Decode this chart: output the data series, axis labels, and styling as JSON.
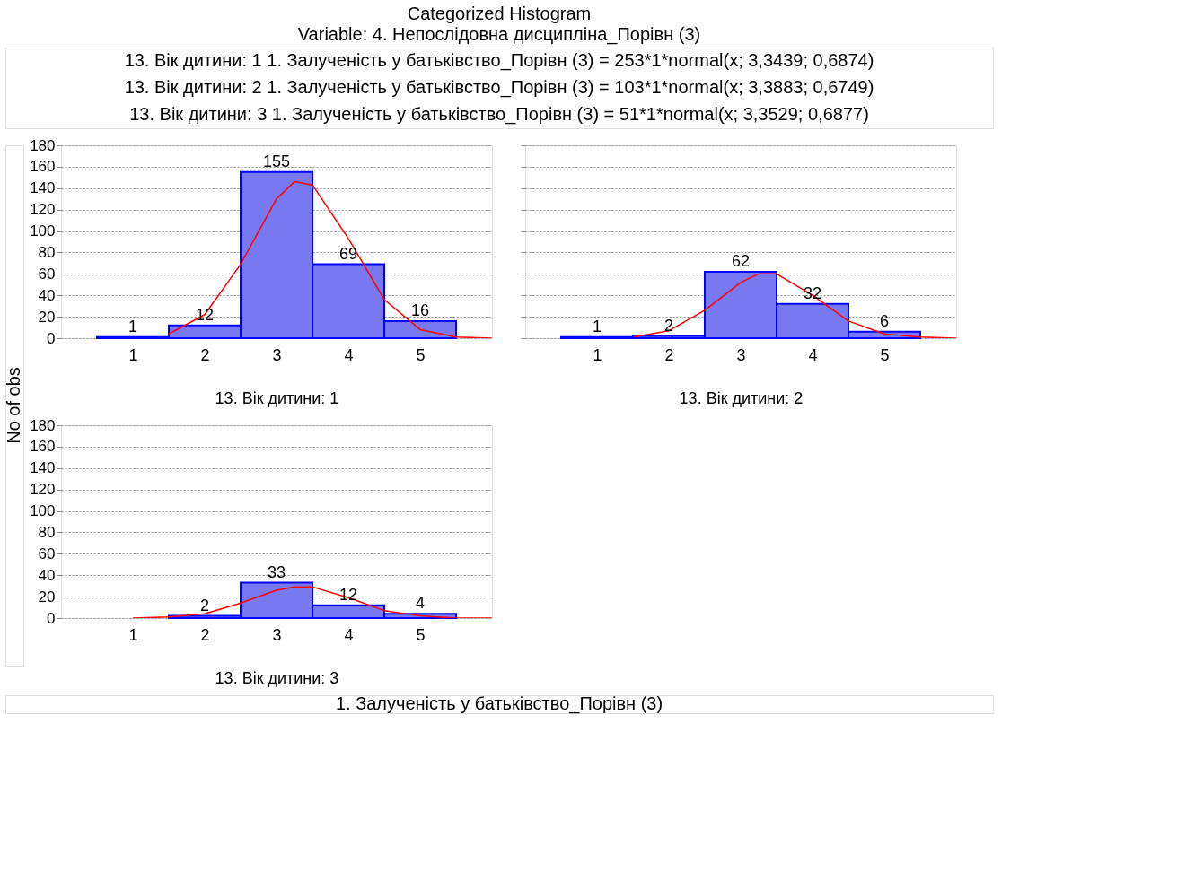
{
  "chart_data": [
    {
      "type": "histogram",
      "title": "Categorized Histogram",
      "subtitle": "Variable: 4. Непослідовна дисципліна_Порівн (3)",
      "ylabel": "No of obs",
      "xlabel": "13. Вік дитини: 1",
      "annotations": [
        "13. Вік дитини: 1 1. Залученість у батьківство_Порівн (3) = 253*1*normal(x; 3,3439; 0,6874)",
        "13. Вік дитини: 2 1. Залученість у батьківство_Порівн (3) = 103*1*normal(x; 3,3883; 0,6749)",
        "13. Вік дитини: 3 1. Залученість у батьківство_Порівн (3) = 51*1*normal(x; 3,3529; 0,6877)"
      ],
      "bins": [
        0.5,
        1.5,
        2.5,
        3.5,
        4.5,
        5.5
      ],
      "values": [
        1,
        12,
        155,
        69,
        16
      ],
      "color": "#7878f0",
      "value_labels": [
        "1",
        "12",
        "155",
        "69",
        "16"
      ],
      "series": [
        {
          "type": "line",
          "color": "#ff0000",
          "x": [
            1.5,
            2,
            2.5,
            3,
            3.25,
            3.5,
            4,
            4.5,
            5,
            5.5,
            6
          ],
          "values": [
            4,
            22,
            69,
            130,
            146,
            143,
            93,
            36,
            8,
            1,
            0
          ]
        }
      ],
      "xlim": [
        0,
        6
      ],
      "xticks": [
        1,
        2,
        3,
        4,
        5
      ],
      "ylim": [
        0,
        180
      ],
      "yticks": [
        0,
        20,
        40,
        60,
        80,
        100,
        120,
        140,
        160,
        180
      ],
      "grid": "y"
    },
    {
      "type": "histogram",
      "xlabel": "13. Вік дитини: 2",
      "bins": [
        0.5,
        1.5,
        2.5,
        3.5,
        4.5,
        5.5
      ],
      "values": [
        1,
        2,
        62,
        32,
        6
      ],
      "color": "#7878f0",
      "value_labels": [
        "1",
        "2",
        "62",
        "32",
        "6"
      ],
      "series": [
        {
          "type": "line",
          "color": "#ff0000",
          "x": [
            1.5,
            2,
            2.5,
            3,
            3.25,
            3.5,
            4,
            4.5,
            5,
            5.5,
            6
          ],
          "values": [
            1,
            7,
            26,
            52,
            60,
            60,
            40,
            16,
            4,
            1,
            0
          ]
        }
      ],
      "xlim": [
        0,
        6
      ],
      "xticks": [
        1,
        2,
        3,
        4,
        5
      ],
      "ylim": [
        0,
        180
      ],
      "yticks": [
        0,
        20,
        40,
        60,
        80,
        100,
        120,
        140,
        160,
        180
      ],
      "grid": "y",
      "tick_labels": "x"
    },
    {
      "type": "histogram",
      "xlabel": "13. Вік дитини: 3",
      "annotations": [
        "1. Залученість у батьківство_Порівн (3)"
      ],
      "bins": [
        0.5,
        1.5,
        2.5,
        3.5,
        4.5,
        5.5
      ],
      "values": [
        null,
        2,
        33,
        12,
        4
      ],
      "color": "#7878f0",
      "value_labels": [
        null,
        "2",
        "33",
        "12",
        "4"
      ],
      "series": [
        {
          "type": "line",
          "color": "#ff0000",
          "x": [
            1,
            1.5,
            2,
            2.5,
            3,
            3.25,
            3.5,
            4,
            4.5,
            5,
            5.5,
            6
          ],
          "values": [
            0,
            1,
            4,
            14,
            26,
            29,
            29,
            19,
            7,
            2,
            0,
            0
          ]
        }
      ],
      "xlim": [
        0,
        6
      ],
      "xticks": [
        1,
        2,
        3,
        4,
        5
      ],
      "ylim": [
        0,
        180
      ],
      "yticks": [
        0,
        20,
        40,
        60,
        80,
        100,
        120,
        140,
        160,
        180
      ],
      "grid": "y"
    }
  ]
}
